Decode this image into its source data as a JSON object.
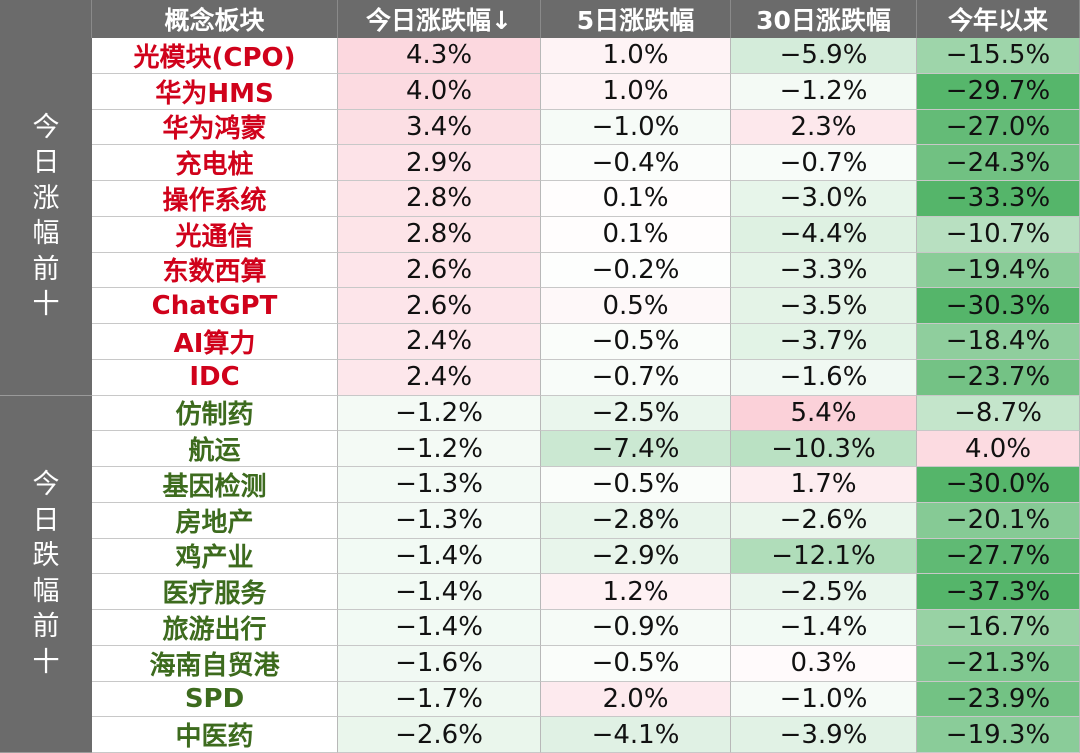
{
  "header": {
    "corner": "",
    "concept": "概念板块",
    "today": "今日涨跌幅↓",
    "five_day": "5日涨跌幅",
    "thirty_day": "30日涨跌幅",
    "ytd": "今年以来"
  },
  "groups": {
    "top": "今日涨幅前十",
    "bottom": "今日跌幅前十"
  },
  "colors": {
    "header_bg": "#6b6b6b",
    "gainer_name": "#d0021b",
    "loser_name": "#3d6b1e",
    "positive_scale": [
      "#ffffff",
      "#fde9ec",
      "#fbd3da"
    ],
    "negative_scale": [
      "#ffffff",
      "#e6f3e8",
      "#c8e6cd",
      "#98d3a3",
      "#5fba73"
    ]
  },
  "rows": [
    {
      "name": "光模块(CPO)",
      "today": "4.3%",
      "d5": "1.0%",
      "d30": "−5.9%",
      "ytd": "−15.5%"
    },
    {
      "name": "华为HMS",
      "today": "4.0%",
      "d5": "1.0%",
      "d30": "−1.2%",
      "ytd": "−29.7%"
    },
    {
      "name": "华为鸿蒙",
      "today": "3.4%",
      "d5": "−1.0%",
      "d30": "2.3%",
      "ytd": "−27.0%"
    },
    {
      "name": "充电桩",
      "today": "2.9%",
      "d5": "−0.4%",
      "d30": "−0.7%",
      "ytd": "−24.3%"
    },
    {
      "name": "操作系统",
      "today": "2.8%",
      "d5": "0.1%",
      "d30": "−3.0%",
      "ytd": "−33.3%"
    },
    {
      "name": "光通信",
      "today": "2.8%",
      "d5": "0.1%",
      "d30": "−4.4%",
      "ytd": "−10.7%"
    },
    {
      "name": "东数西算",
      "today": "2.6%",
      "d5": "−0.2%",
      "d30": "−3.3%",
      "ytd": "−19.4%"
    },
    {
      "name": "ChatGPT",
      "today": "2.6%",
      "d5": "0.5%",
      "d30": "−3.5%",
      "ytd": "−30.3%"
    },
    {
      "name": "AI算力",
      "today": "2.4%",
      "d5": "−0.5%",
      "d30": "−3.7%",
      "ytd": "−18.4%"
    },
    {
      "name": "IDC",
      "today": "2.4%",
      "d5": "−0.7%",
      "d30": "−1.6%",
      "ytd": "−23.7%"
    },
    {
      "name": "仿制药",
      "today": "−1.2%",
      "d5": "−2.5%",
      "d30": "5.4%",
      "ytd": "−8.7%"
    },
    {
      "name": "航运",
      "today": "−1.2%",
      "d5": "−7.4%",
      "d30": "−10.3%",
      "ytd": "4.0%"
    },
    {
      "name": "基因检测",
      "today": "−1.3%",
      "d5": "−0.5%",
      "d30": "1.7%",
      "ytd": "−30.0%"
    },
    {
      "name": "房地产",
      "today": "−1.3%",
      "d5": "−2.8%",
      "d30": "−2.6%",
      "ytd": "−20.1%"
    },
    {
      "name": "鸡产业",
      "today": "−1.4%",
      "d5": "−2.9%",
      "d30": "−12.1%",
      "ytd": "−27.7%"
    },
    {
      "name": "医疗服务",
      "today": "−1.4%",
      "d5": "1.2%",
      "d30": "−2.5%",
      "ytd": "−37.3%"
    },
    {
      "name": "旅游出行",
      "today": "−1.4%",
      "d5": "−0.9%",
      "d30": "−1.4%",
      "ytd": "−16.7%"
    },
    {
      "name": "海南自贸港",
      "today": "−1.6%",
      "d5": "−0.5%",
      "d30": "0.3%",
      "ytd": "−21.3%"
    },
    {
      "name": "SPD",
      "today": "−1.7%",
      "d5": "2.0%",
      "d30": "−1.0%",
      "ytd": "−23.9%"
    },
    {
      "name": "中医药",
      "today": "−2.6%",
      "d5": "−4.1%",
      "d30": "−3.9%",
      "ytd": "−19.3%"
    }
  ]
}
